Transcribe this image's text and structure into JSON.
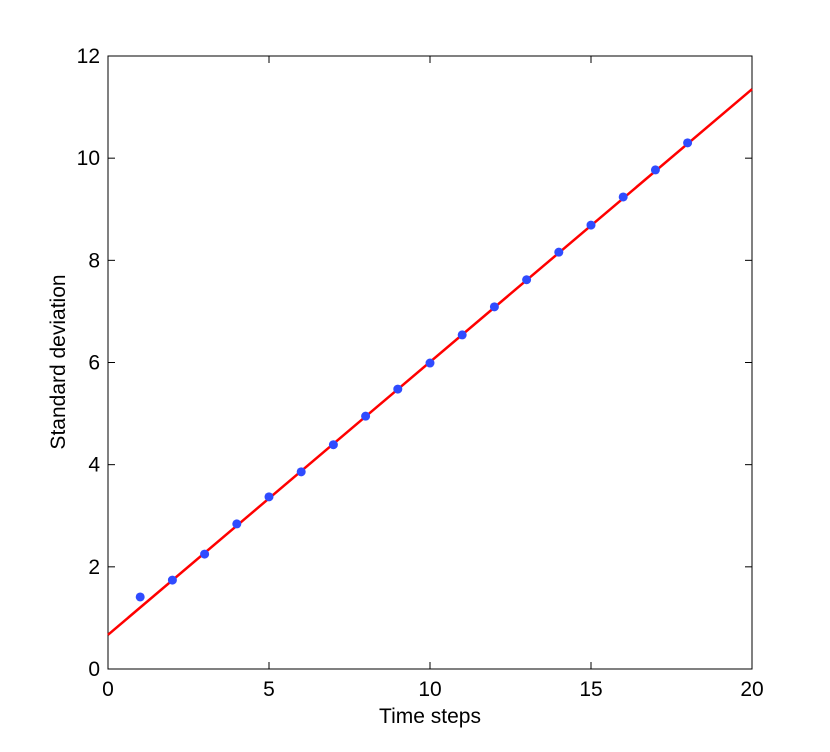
{
  "chart_data": {
    "type": "scatter",
    "xlabel": "Time steps",
    "ylabel": "Standard deviation",
    "xlim": [
      0,
      20
    ],
    "xticks": [
      0,
      5,
      10,
      15,
      20
    ],
    "ylim": [
      0,
      12
    ],
    "yticks": [
      0,
      2,
      4,
      6,
      8,
      10,
      12
    ],
    "grid": false,
    "series": [
      {
        "style": "markers",
        "color": "#2f4bff",
        "x": [
          1,
          2,
          3,
          4,
          5,
          6,
          7,
          8,
          9,
          10,
          11,
          12,
          13,
          14,
          15,
          16,
          17,
          18
        ],
        "values": [
          1.41,
          1.74,
          2.25,
          2.84,
          3.37,
          3.86,
          4.39,
          4.95,
          5.48,
          5.99,
          6.54,
          7.09,
          7.62,
          8.16,
          8.69,
          9.24,
          9.77,
          10.3
        ]
      },
      {
        "style": "line",
        "color": "#ff0000",
        "x": [
          0,
          20
        ],
        "values": [
          0.67,
          11.35
        ]
      }
    ]
  }
}
